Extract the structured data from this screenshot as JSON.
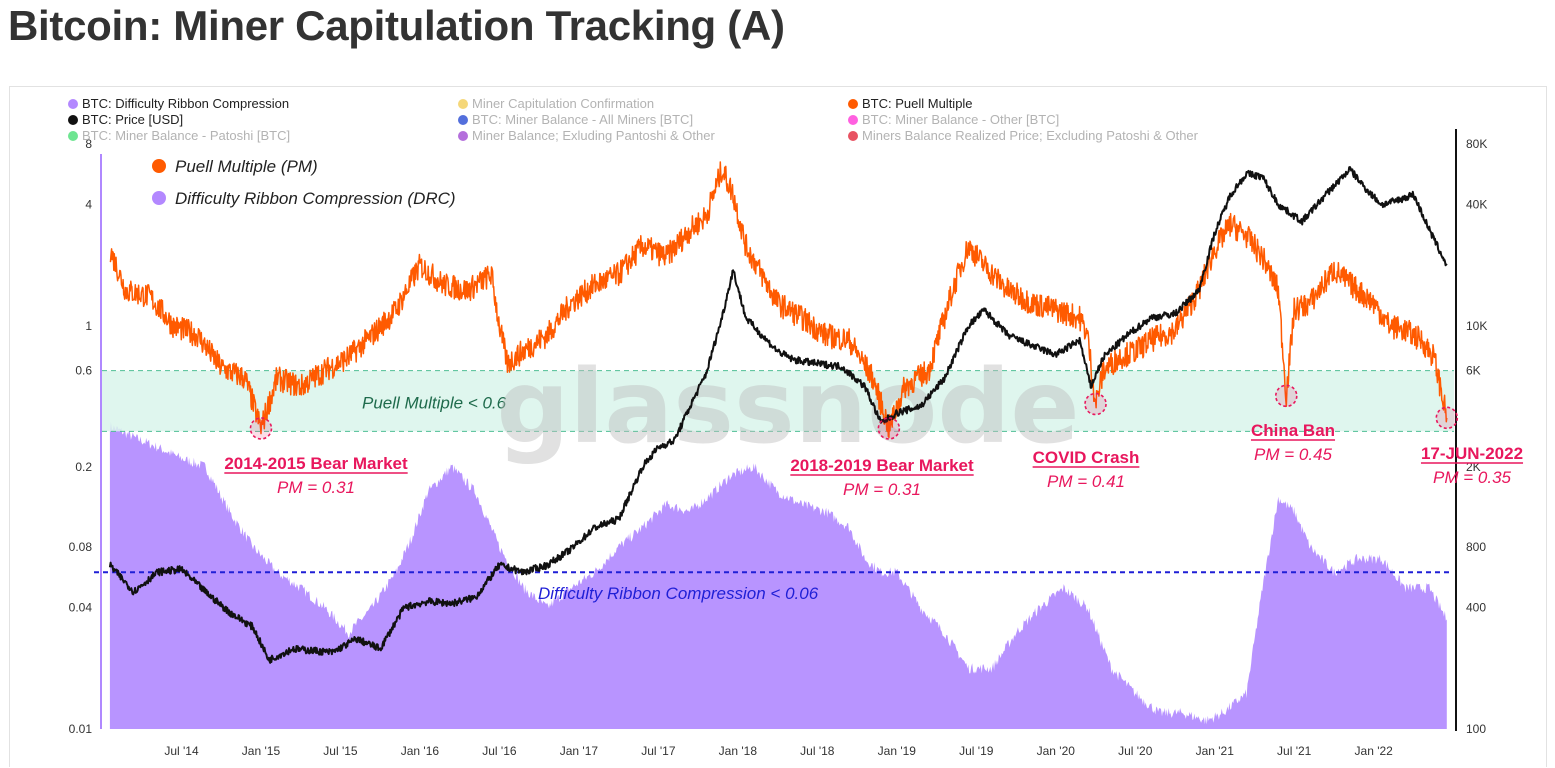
{
  "page": {
    "title": "Bitcoin: Miner Capitulation Tracking (A)"
  },
  "watermark": "glassnode",
  "colors": {
    "drc": "#b088ff",
    "price": "#111111",
    "pm": "#ff5a00",
    "band": "#d9f5eb",
    "bandLine": "#4fbf95",
    "drcLine": "#1f1fd6",
    "annot": "#e8175d"
  },
  "legend": [
    {
      "label": "BTC: Difficulty Ribbon Compression",
      "color": "#b388ff",
      "dim": false
    },
    {
      "label": "Miner Capitulation Confirmation",
      "color": "#f2c94c",
      "dim": true
    },
    {
      "label": "BTC: Puell Multiple",
      "color": "#ff5a00",
      "dim": false
    },
    {
      "label": "BTC: Price [USD]",
      "color": "#111111",
      "dim": false
    },
    {
      "label": "BTC: Miner Balance - All Miners [BTC]",
      "color": "#1a3fd0",
      "dim": true
    },
    {
      "label": "BTC: Miner Balance - Other [BTC]",
      "color": "#ff2bd6",
      "dim": true
    },
    {
      "label": "BTC: Miner Balance - Patoshi [BTC]",
      "color": "#3ddc6c",
      "dim": true
    },
    {
      "label": "Miner Balance; Exluding Pantoshi & Other",
      "color": "#9b3fd0",
      "dim": true
    },
    {
      "label": "Miners Balance Realized Price; Excluding Patoshi & Other",
      "color": "#e0182d",
      "dim": true
    }
  ],
  "inner_legend": [
    {
      "label": "Puell Multiple (PM)",
      "color": "#ff5a00"
    },
    {
      "label": "Difficulty Ribbon Compression (DRC)",
      "color": "#b388ff"
    }
  ],
  "thresholds": {
    "pm_label": "Puell Multiple < 0.6",
    "drc_label": "Difficulty Ribbon Compression < 0.06"
  },
  "annotations": [
    {
      "title": "2014-2015  Bear Market",
      "pm": "PM = 0.31",
      "date": 2015.0,
      "value": 0.31
    },
    {
      "title": "2018-2019 Bear Market",
      "pm": "PM = 0.31",
      "date": 2018.95,
      "value": 0.31
    },
    {
      "title": "COVID Crash",
      "pm": "PM = 0.41",
      "date": 2020.25,
      "value": 0.41
    },
    {
      "title": "China Ban",
      "pm": "PM = 0.45",
      "date": 2021.45,
      "value": 0.45
    },
    {
      "title": "17-JUN-2022",
      "pm": "PM = 0.35",
      "date": 2022.46,
      "value": 0.35
    }
  ],
  "chart_data": {
    "type": "line",
    "title": "Bitcoin: Miner Capitulation Tracking (A)",
    "x_ticks": [
      "Jul '14",
      "Jan '15",
      "Jul '15",
      "Jan '16",
      "Jul '16",
      "Jan '17",
      "Jul '17",
      "Jan '18",
      "Jul '18",
      "Jan '19",
      "Jul '19",
      "Jan '20",
      "Jul '20",
      "Jan '21",
      "Jul '21",
      "Jan '22"
    ],
    "x_tick_values": [
      2014.5,
      2015.0,
      2015.5,
      2016.0,
      2016.5,
      2017.0,
      2017.5,
      2018.0,
      2018.5,
      2019.0,
      2019.5,
      2020.0,
      2020.5,
      2021.0,
      2021.5,
      2022.0
    ],
    "xlim": [
      2014.0,
      2022.48
    ],
    "y_left": {
      "scale": "log",
      "ylim": [
        0.01,
        8
      ],
      "ticks": [
        8,
        4,
        1,
        0.6,
        0.2,
        0.08,
        0.04,
        0.01
      ],
      "tick_labels": [
        "8",
        "4",
        "1",
        "0.6",
        "0.2",
        "0.08",
        "0.04",
        "0.01"
      ]
    },
    "y_right": {
      "scale": "log",
      "ylim": [
        100,
        80000
      ],
      "ticks": [
        80000,
        40000,
        10000,
        6000,
        2000,
        800,
        400,
        100
      ],
      "tick_labels": [
        "80K",
        "40K",
        "10K",
        "6K",
        "2K",
        "800",
        "400",
        "100"
      ]
    },
    "threshold_pm": [
      0.3,
      0.6
    ],
    "threshold_drc": 0.06,
    "legend_position": "top",
    "grid": false,
    "series": [
      {
        "name": "BTC: Puell Multiple",
        "axis": "left",
        "x": [
          2014.05,
          2014.15,
          2014.3,
          2014.45,
          2014.6,
          2014.75,
          2014.9,
          2015.0,
          2015.1,
          2015.25,
          2015.4,
          2015.55,
          2015.7,
          2015.85,
          2016.0,
          2016.15,
          2016.3,
          2016.45,
          2016.5,
          2016.55,
          2016.65,
          2016.8,
          2016.95,
          2017.1,
          2017.25,
          2017.4,
          2017.55,
          2017.7,
          2017.8,
          2017.9,
          2017.97,
          2018.05,
          2018.15,
          2018.25,
          2018.4,
          2018.55,
          2018.7,
          2018.85,
          2018.95,
          2019.05,
          2019.2,
          2019.35,
          2019.45,
          2019.55,
          2019.7,
          2019.85,
          2020.0,
          2020.15,
          2020.2,
          2020.25,
          2020.3,
          2020.4,
          2020.5,
          2020.6,
          2020.75,
          2020.9,
          2021.0,
          2021.1,
          2021.2,
          2021.3,
          2021.4,
          2021.45,
          2021.5,
          2021.6,
          2021.75,
          2021.9,
          2022.0,
          2022.1,
          2022.2,
          2022.3,
          2022.38,
          2022.46
        ],
        "y": [
          2.4,
          1.5,
          1.4,
          1.0,
          0.9,
          0.62,
          0.55,
          0.31,
          0.55,
          0.5,
          0.6,
          0.7,
          0.9,
          1.2,
          2.0,
          1.6,
          1.5,
          1.8,
          1.0,
          0.65,
          0.75,
          0.9,
          1.3,
          1.6,
          1.8,
          2.5,
          2.2,
          3.0,
          3.5,
          6.0,
          4.5,
          2.5,
          1.8,
          1.3,
          1.1,
          0.9,
          0.85,
          0.55,
          0.31,
          0.5,
          0.6,
          1.5,
          2.5,
          2.0,
          1.5,
          1.3,
          1.2,
          1.1,
          0.9,
          0.41,
          0.6,
          0.7,
          0.75,
          0.85,
          0.95,
          1.5,
          2.4,
          3.2,
          2.8,
          2.2,
          1.5,
          0.45,
          1.2,
          1.3,
          1.9,
          1.5,
          1.3,
          1.0,
          0.95,
          0.85,
          0.7,
          0.35
        ]
      },
      {
        "name": "BTC: Price [USD]",
        "axis": "right",
        "x": [
          2014.05,
          2014.2,
          2014.35,
          2014.5,
          2014.65,
          2014.8,
          2014.95,
          2015.05,
          2015.2,
          2015.45,
          2015.6,
          2015.75,
          2015.9,
          2016.05,
          2016.2,
          2016.35,
          2016.5,
          2016.65,
          2016.8,
          2016.95,
          2017.1,
          2017.25,
          2017.4,
          2017.5,
          2017.6,
          2017.7,
          2017.8,
          2017.9,
          2017.97,
          2018.05,
          2018.15,
          2018.25,
          2018.35,
          2018.5,
          2018.65,
          2018.8,
          2018.9,
          2019.0,
          2019.15,
          2019.3,
          2019.45,
          2019.55,
          2019.7,
          2019.85,
          2020.0,
          2020.15,
          2020.22,
          2020.3,
          2020.45,
          2020.6,
          2020.75,
          2020.9,
          2021.0,
          2021.1,
          2021.2,
          2021.3,
          2021.4,
          2021.55,
          2021.7,
          2021.85,
          2021.95,
          2022.05,
          2022.15,
          2022.25,
          2022.35,
          2022.46
        ],
        "y": [
          650,
          480,
          600,
          620,
          480,
          380,
          320,
          220,
          250,
          240,
          280,
          250,
          400,
          430,
          420,
          450,
          650,
          600,
          650,
          780,
          1000,
          1100,
          2000,
          2500,
          2700,
          4000,
          5800,
          11000,
          19000,
          11000,
          9000,
          7500,
          6800,
          6500,
          6300,
          5000,
          3300,
          3700,
          4000,
          5500,
          10000,
          12000,
          9000,
          8000,
          7200,
          8500,
          5000,
          7000,
          9000,
          11000,
          11500,
          15000,
          29000,
          45000,
          57000,
          55000,
          40000,
          33000,
          45000,
          60000,
          48000,
          40000,
          42000,
          45000,
          30000,
          20000
        ]
      },
      {
        "name": "BTC: Difficulty Ribbon Compression",
        "axis": "left",
        "type": "area",
        "x": [
          2014.05,
          2014.2,
          2014.35,
          2014.5,
          2014.65,
          2014.8,
          2014.95,
          2015.1,
          2015.25,
          2015.4,
          2015.55,
          2015.7,
          2015.85,
          2015.95,
          2016.05,
          2016.2,
          2016.35,
          2016.5,
          2016.65,
          2016.8,
          2016.95,
          2017.1,
          2017.25,
          2017.4,
          2017.55,
          2017.7,
          2017.85,
          2017.95,
          2018.1,
          2018.25,
          2018.4,
          2018.55,
          2018.7,
          2018.8,
          2018.9,
          2019.0,
          2019.15,
          2019.3,
          2019.45,
          2019.6,
          2019.75,
          2019.9,
          2020.05,
          2020.2,
          2020.35,
          2020.5,
          2020.65,
          2020.8,
          2020.95,
          2021.05,
          2021.2,
          2021.3,
          2021.4,
          2021.5,
          2021.6,
          2021.75,
          2021.9,
          2022.05,
          2022.2,
          2022.35,
          2022.46
        ],
        "y": [
          0.32,
          0.28,
          0.25,
          0.22,
          0.2,
          0.12,
          0.08,
          0.06,
          0.05,
          0.04,
          0.03,
          0.04,
          0.06,
          0.09,
          0.15,
          0.2,
          0.15,
          0.08,
          0.05,
          0.04,
          0.05,
          0.06,
          0.08,
          0.1,
          0.13,
          0.12,
          0.15,
          0.18,
          0.2,
          0.15,
          0.13,
          0.12,
          0.1,
          0.07,
          0.06,
          0.06,
          0.04,
          0.03,
          0.02,
          0.02,
          0.03,
          0.04,
          0.05,
          0.04,
          0.02,
          0.015,
          0.012,
          0.012,
          0.011,
          0.012,
          0.015,
          0.05,
          0.14,
          0.12,
          0.08,
          0.06,
          0.07,
          0.07,
          0.05,
          0.05,
          0.035
        ]
      }
    ]
  }
}
